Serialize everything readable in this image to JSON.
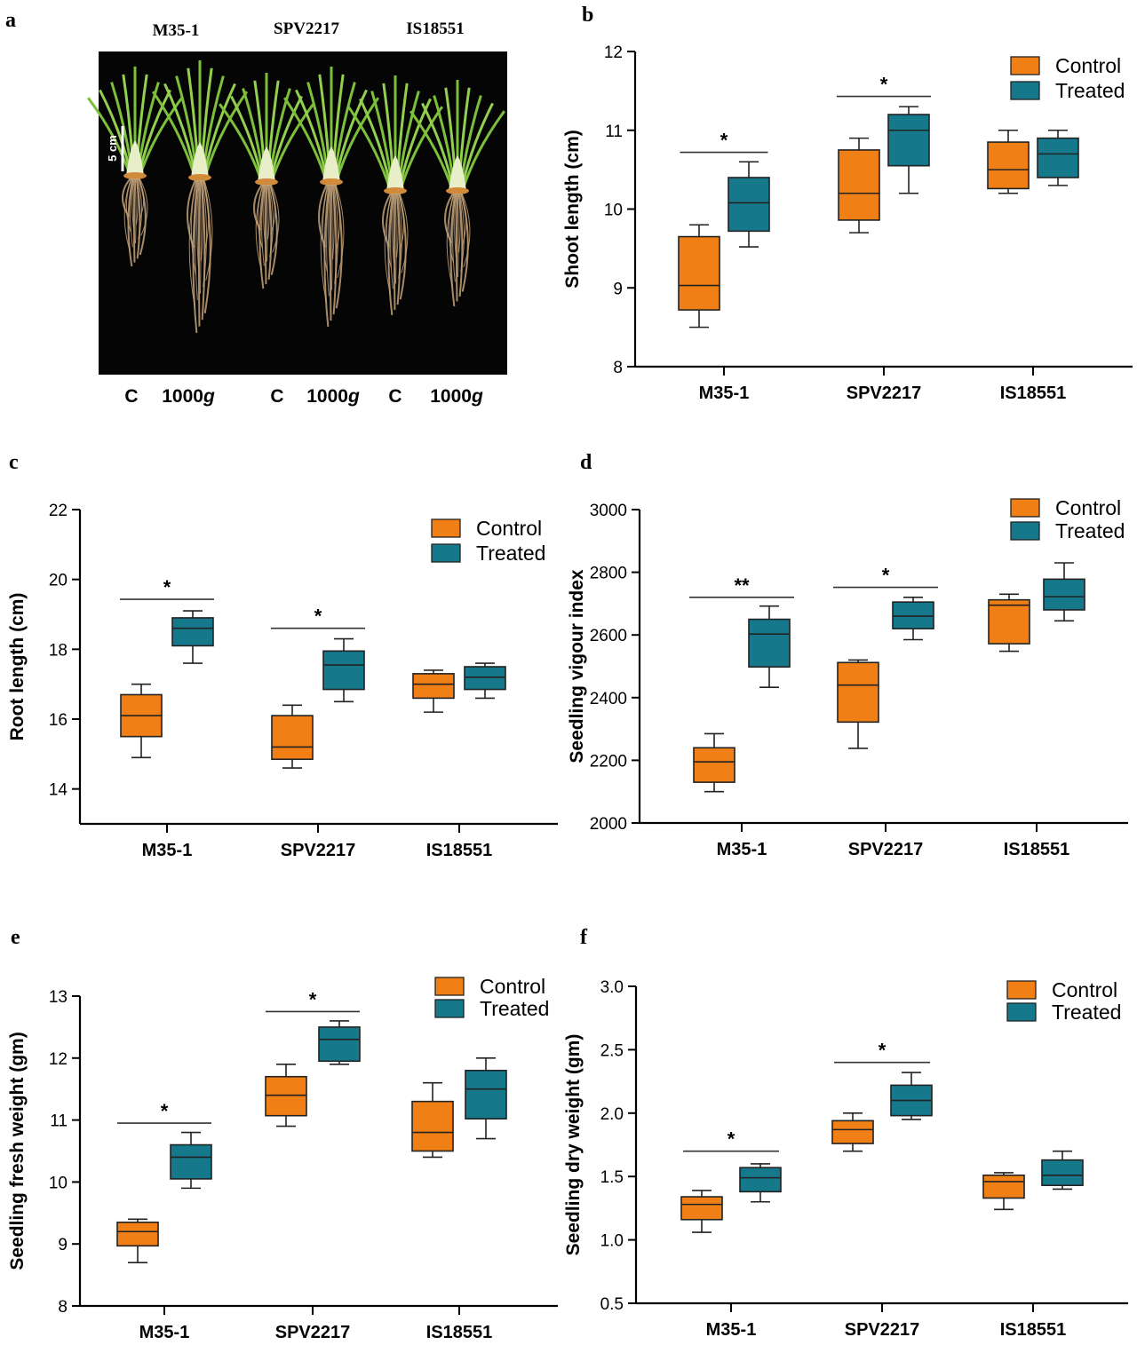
{
  "colors": {
    "control": "#f07f16",
    "treated": "#15788b",
    "axis": "#000000",
    "photo_bg": "#050505",
    "shoot": "#7cbf3a",
    "root": "#c4a37a",
    "scale": "#ffffff"
  },
  "photo": {
    "panel_label": "a",
    "genotypes": [
      "M35-1",
      "SPV2217",
      "IS18551"
    ],
    "treatments": [
      [
        "C",
        "1000",
        "g"
      ],
      [
        "C",
        "1000",
        "g"
      ],
      [
        "C",
        "1000",
        "g"
      ]
    ],
    "scale_bar_label": "5 cm"
  },
  "chart_data": [
    {
      "id": "b",
      "panel_label": "b",
      "type": "box",
      "ylabel": "Shoot length (cm)",
      "ylim": [
        8,
        12
      ],
      "yticks": [
        "8",
        "9",
        "10",
        "11",
        "12"
      ],
      "categories": [
        "M35-1",
        "SPV2217",
        "IS18551"
      ],
      "legend": [
        "Control",
        "Treated"
      ],
      "series": [
        {
          "name": "Control",
          "boxes": [
            {
              "min": 8.5,
              "q1": 8.72,
              "median": 9.03,
              "q3": 9.65,
              "max": 9.8
            },
            {
              "min": 9.7,
              "q1": 9.86,
              "median": 10.2,
              "q3": 10.75,
              "max": 10.9
            },
            {
              "min": 10.2,
              "q1": 10.26,
              "median": 10.5,
              "q3": 10.85,
              "max": 11.0
            }
          ]
        },
        {
          "name": "Treated",
          "boxes": [
            {
              "min": 9.52,
              "q1": 9.72,
              "median": 10.08,
              "q3": 10.4,
              "max": 10.6
            },
            {
              "min": 10.2,
              "q1": 10.55,
              "median": 11.0,
              "q3": 11.2,
              "max": 11.3
            },
            {
              "min": 10.3,
              "q1": 10.4,
              "median": 10.7,
              "q3": 10.9,
              "max": 11.0
            }
          ]
        }
      ],
      "significance": [
        {
          "category": "M35-1",
          "label": "*",
          "y": 10.72
        },
        {
          "category": "SPV2217",
          "label": "*",
          "y": 11.43
        }
      ]
    },
    {
      "id": "c",
      "panel_label": "c",
      "type": "box",
      "ylabel": "Root length (cm)",
      "ylim": [
        13,
        22
      ],
      "yticks": [
        "14",
        "16",
        "18",
        "20",
        "22"
      ],
      "categories": [
        "M35-1",
        "SPV2217",
        "IS18551"
      ],
      "legend": [
        "Control",
        "Treated"
      ],
      "series": [
        {
          "name": "Control",
          "boxes": [
            {
              "min": 14.9,
              "q1": 15.5,
              "median": 16.1,
              "q3": 16.7,
              "max": 17.0
            },
            {
              "min": 14.6,
              "q1": 14.85,
              "median": 15.2,
              "q3": 16.1,
              "max": 16.4
            },
            {
              "min": 16.2,
              "q1": 16.6,
              "median": 17.0,
              "q3": 17.3,
              "max": 17.4
            }
          ]
        },
        {
          "name": "Treated",
          "boxes": [
            {
              "min": 17.6,
              "q1": 18.1,
              "median": 18.6,
              "q3": 18.9,
              "max": 19.1
            },
            {
              "min": 16.5,
              "q1": 16.85,
              "median": 17.55,
              "q3": 17.95,
              "max": 18.3
            },
            {
              "min": 16.6,
              "q1": 16.85,
              "median": 17.2,
              "q3": 17.5,
              "max": 17.6
            }
          ]
        }
      ],
      "significance": [
        {
          "category": "M35-1",
          "label": "*",
          "y": 19.43
        },
        {
          "category": "SPV2217",
          "label": "*",
          "y": 18.6
        }
      ]
    },
    {
      "id": "d",
      "panel_label": "d",
      "type": "box",
      "ylabel": "Seedling vigour index",
      "ylim": [
        2000,
        3000
      ],
      "yticks": [
        "2000",
        "2200",
        "2400",
        "2600",
        "2800",
        "3000"
      ],
      "categories": [
        "M35-1",
        "SPV2217",
        "IS18551"
      ],
      "legend": [
        "Control",
        "Treated"
      ],
      "series": [
        {
          "name": "Control",
          "boxes": [
            {
              "min": 2100,
              "q1": 2130,
              "median": 2195,
              "q3": 2240,
              "max": 2285
            },
            {
              "min": 2238,
              "q1": 2322,
              "median": 2440,
              "q3": 2512,
              "max": 2520
            },
            {
              "min": 2548,
              "q1": 2572,
              "median": 2695,
              "q3": 2712,
              "max": 2730
            }
          ]
        },
        {
          "name": "Treated",
          "boxes": [
            {
              "min": 2433,
              "q1": 2498,
              "median": 2603,
              "q3": 2650,
              "max": 2692
            },
            {
              "min": 2585,
              "q1": 2620,
              "median": 2660,
              "q3": 2705,
              "max": 2720
            },
            {
              "min": 2645,
              "q1": 2680,
              "median": 2722,
              "q3": 2778,
              "max": 2830
            }
          ]
        }
      ],
      "significance": [
        {
          "category": "M35-1",
          "label": "**",
          "y": 2720
        },
        {
          "category": "SPV2217",
          "label": "*",
          "y": 2752
        }
      ]
    },
    {
      "id": "e",
      "panel_label": "e",
      "type": "box",
      "ylabel": "Seedling fresh weight (gm)",
      "ylim": [
        8,
        13
      ],
      "yticks": [
        "8",
        "9",
        "10",
        "11",
        "12",
        "13"
      ],
      "categories": [
        "M35-1",
        "SPV2217",
        "IS18551"
      ],
      "legend": [
        "Control",
        "Treated"
      ],
      "series": [
        {
          "name": "Control",
          "boxes": [
            {
              "min": 8.7,
              "q1": 8.97,
              "median": 9.2,
              "q3": 9.35,
              "max": 9.4
            },
            {
              "min": 10.9,
              "q1": 11.07,
              "median": 11.4,
              "q3": 11.7,
              "max": 11.9
            },
            {
              "min": 10.4,
              "q1": 10.5,
              "median": 10.8,
              "q3": 11.3,
              "max": 11.6
            }
          ]
        },
        {
          "name": "Treated",
          "boxes": [
            {
              "min": 9.9,
              "q1": 10.05,
              "median": 10.4,
              "q3": 10.6,
              "max": 10.8
            },
            {
              "min": 11.9,
              "q1": 11.95,
              "median": 12.3,
              "q3": 12.5,
              "max": 12.6
            },
            {
              "min": 10.7,
              "q1": 11.02,
              "median": 11.5,
              "q3": 11.8,
              "max": 12.0
            }
          ]
        }
      ],
      "significance": [
        {
          "category": "M35-1",
          "label": "*",
          "y": 10.95
        },
        {
          "category": "SPV2217",
          "label": "*",
          "y": 12.75
        }
      ]
    },
    {
      "id": "f",
      "panel_label": "f",
      "type": "box",
      "ylabel": "Seedling dry weight (gm)",
      "ylim": [
        0.5,
        3.0
      ],
      "yticks": [
        "0.5",
        "1.0",
        "1.5",
        "2.0",
        "2.5",
        "3.0"
      ],
      "categories": [
        "M35-1",
        "SPV2217",
        "IS18551"
      ],
      "legend": [
        "Control",
        "Treated"
      ],
      "series": [
        {
          "name": "Control",
          "boxes": [
            {
              "min": 1.06,
              "q1": 1.16,
              "median": 1.28,
              "q3": 1.34,
              "max": 1.39
            },
            {
              "min": 1.7,
              "q1": 1.76,
              "median": 1.87,
              "q3": 1.94,
              "max": 2.0
            },
            {
              "min": 1.24,
              "q1": 1.33,
              "median": 1.46,
              "q3": 1.51,
              "max": 1.53
            }
          ]
        },
        {
          "name": "Treated",
          "boxes": [
            {
              "min": 1.3,
              "q1": 1.38,
              "median": 1.49,
              "q3": 1.57,
              "max": 1.6
            },
            {
              "min": 1.95,
              "q1": 1.98,
              "median": 2.1,
              "q3": 2.22,
              "max": 2.32
            },
            {
              "min": 1.4,
              "q1": 1.43,
              "median": 1.51,
              "q3": 1.63,
              "max": 1.7
            }
          ]
        }
      ],
      "significance": [
        {
          "category": "M35-1",
          "label": "*",
          "y": 1.7
        },
        {
          "category": "SPV2217",
          "label": "*",
          "y": 2.4
        }
      ]
    }
  ]
}
